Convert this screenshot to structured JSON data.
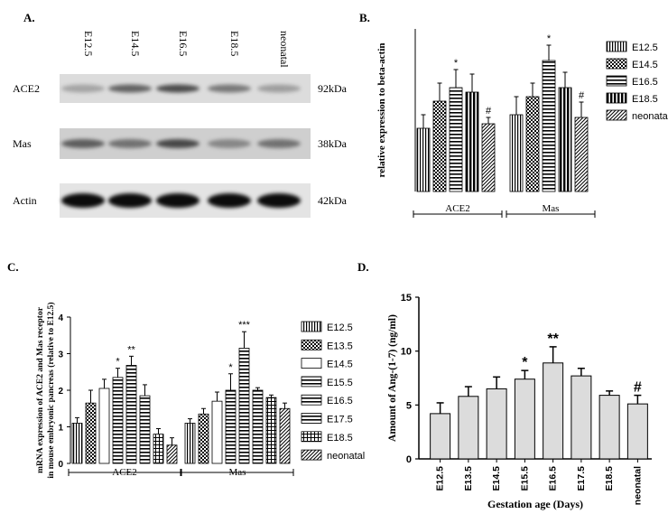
{
  "chart_data": [
    {
      "panel": "A.",
      "type": "table",
      "lanes": [
        "E12.5",
        "E14.5",
        "E16.5",
        "E18.5",
        "neonatal"
      ],
      "blots": [
        {
          "protein": "ACE2",
          "size": "92kDa"
        },
        {
          "protein": "Mas",
          "size": "38kDa"
        },
        {
          "protein": "Actin",
          "size": "42kDa"
        }
      ]
    },
    {
      "panel": "B.",
      "type": "bar",
      "ylabel": "relative expression to beta-actin",
      "ylim": [
        0,
        1.8
      ],
      "yticks": [],
      "categories": [
        "ACE2",
        "Mas"
      ],
      "series": [
        {
          "name": "E12.5",
          "values": [
            0.7,
            0.85
          ],
          "errors": [
            0.15,
            0.2
          ],
          "pattern": "vlines"
        },
        {
          "name": "E14.5",
          "values": [
            1.0,
            1.05
          ],
          "errors": [
            0.2,
            0.15
          ],
          "pattern": "checker"
        },
        {
          "name": "E16.5",
          "values": [
            1.15,
            1.45
          ],
          "errors": [
            0.2,
            0.17
          ],
          "pattern": "hlines"
        },
        {
          "name": "E18.5",
          "values": [
            1.1,
            1.15
          ],
          "errors": [
            0.2,
            0.17
          ],
          "pattern": "thickv"
        },
        {
          "name": "neonatal",
          "values": [
            0.75,
            0.82
          ],
          "errors": [
            0.07,
            0.17
          ],
          "pattern": "diag"
        }
      ],
      "annotations": [
        {
          "group": 0,
          "series": 2,
          "text": "*"
        },
        {
          "group": 0,
          "series": 4,
          "text": "#"
        },
        {
          "group": 1,
          "series": 2,
          "text": "*"
        },
        {
          "group": 1,
          "series": 4,
          "text": "#"
        }
      ]
    },
    {
      "panel": "C.",
      "type": "bar",
      "ylabel": "mRNA expression of ACE2 and Mas receptor in mouse embryonic pancreas (relative to E12.5)",
      "ylim": [
        0,
        4
      ],
      "yticks": [
        "0",
        "1",
        "2",
        "3",
        "4"
      ],
      "categories": [
        "ACE2",
        "Mas"
      ],
      "series": [
        {
          "name": "E12.5",
          "values": [
            1.1,
            1.1
          ],
          "errors": [
            0.15,
            0.12
          ],
          "pattern": "vlines"
        },
        {
          "name": "E13.5",
          "values": [
            1.65,
            1.35
          ],
          "errors": [
            0.35,
            0.15
          ],
          "pattern": "checker"
        },
        {
          "name": "E14.5",
          "values": [
            2.05,
            1.7
          ],
          "errors": [
            0.25,
            0.25
          ],
          "pattern": "white"
        },
        {
          "name": "E15.5",
          "values": [
            2.35,
            2.0
          ],
          "errors": [
            0.25,
            0.45
          ],
          "pattern": "hlines"
        },
        {
          "name": "E16.5",
          "values": [
            2.68,
            3.15
          ],
          "errors": [
            0.25,
            0.45
          ],
          "pattern": "hlines"
        },
        {
          "name": "E17.5",
          "values": [
            1.85,
            2.0
          ],
          "errors": [
            0.3,
            0.07
          ],
          "pattern": "hlines"
        },
        {
          "name": "E18.5",
          "values": [
            0.8,
            1.8
          ],
          "errors": [
            0.15,
            0.07
          ],
          "pattern": "grid"
        },
        {
          "name": "neonatal",
          "values": [
            0.5,
            1.5
          ],
          "errors": [
            0.2,
            0.15
          ],
          "pattern": "diag"
        }
      ],
      "annotations": [
        {
          "group": 0,
          "series": 3,
          "text": "*"
        },
        {
          "group": 0,
          "series": 4,
          "text": "**"
        },
        {
          "group": 1,
          "series": 3,
          "text": "*"
        },
        {
          "group": 1,
          "series": 4,
          "text": "***"
        }
      ]
    },
    {
      "panel": "D.",
      "type": "bar",
      "ylabel": "Amount of  Ang-(1-7) (ng/ml)",
      "xlabel": "Gestation age (Days)",
      "ylim": [
        0,
        15
      ],
      "yticks": [
        "0",
        "5",
        "10",
        "15"
      ],
      "categories": [
        "E12.5",
        "E13.5",
        "E14.5",
        "E15.5",
        "E16.5",
        "E17.5",
        "E18.5",
        "neonatal"
      ],
      "values": [
        4.2,
        5.8,
        6.5,
        7.4,
        8.9,
        7.7,
        5.9,
        5.1
      ],
      "errors": [
        1.0,
        0.9,
        1.1,
        0.8,
        1.5,
        0.7,
        0.4,
        0.8
      ],
      "annotations": [
        {
          "index": 3,
          "text": "*"
        },
        {
          "index": 4,
          "text": "**"
        },
        {
          "index": 7,
          "text": "#"
        }
      ]
    }
  ]
}
